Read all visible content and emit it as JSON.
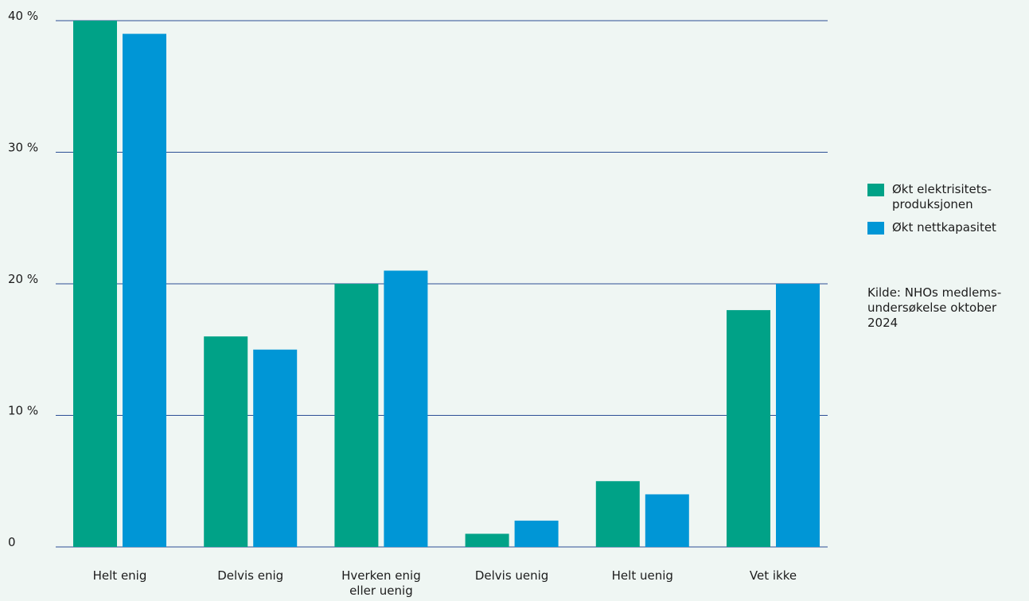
{
  "chart_data": {
    "type": "bar",
    "categories": [
      "Helt enig",
      "Delvis enig",
      "Hverken enig\neller uenig",
      "Delvis uenig",
      "Helt uenig",
      "Vet ikke"
    ],
    "series": [
      {
        "name": "Økt elektrisitets-\nproduksjonen",
        "values": [
          40,
          16,
          20,
          1,
          5,
          18
        ],
        "color": "#00a287"
      },
      {
        "name": "Økt nettkapasitet",
        "values": [
          39,
          15,
          21,
          2,
          4,
          20
        ],
        "color": "#0096d6"
      }
    ],
    "yticks": [
      "0",
      "10 %",
      "20 %",
      "30 %",
      "40 %"
    ],
    "ylim": [
      0,
      40
    ],
    "grid": true,
    "legend_position": "right",
    "gridline_color": "#2c4f95"
  },
  "source_note": "Kilde: NHOs medlems-\nundersøkelse oktober\n2024"
}
